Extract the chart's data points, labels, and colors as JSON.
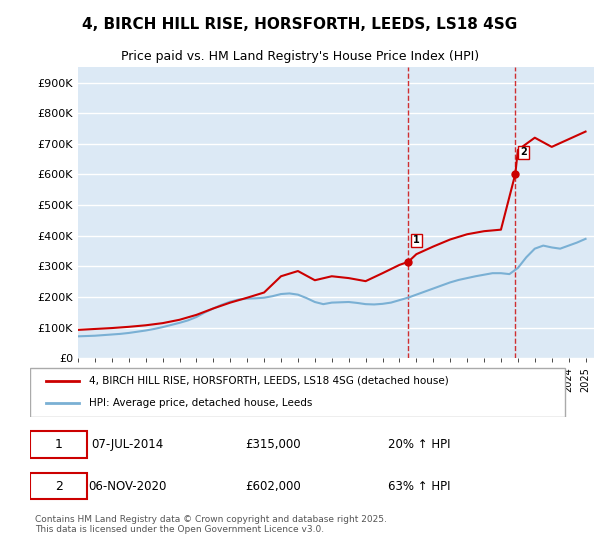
{
  "title": "4, BIRCH HILL RISE, HORSFORTH, LEEDS, LS18 4SG",
  "subtitle": "Price paid vs. HM Land Registry's House Price Index (HPI)",
  "ylabel_ticks": [
    "£0",
    "£100K",
    "£200K",
    "£300K",
    "£400K",
    "£500K",
    "£600K",
    "£700K",
    "£800K",
    "£900K"
  ],
  "ytick_vals": [
    0,
    100000,
    200000,
    300000,
    400000,
    500000,
    600000,
    700000,
    800000,
    900000
  ],
  "ylim": [
    0,
    950000
  ],
  "xlim_start": 1995.0,
  "xlim_end": 2025.5,
  "background_color": "#ffffff",
  "plot_bg_color": "#dce9f5",
  "grid_color": "#ffffff",
  "line1_color": "#cc0000",
  "line2_color": "#7ab0d4",
  "vline1_x": 2014.52,
  "vline2_x": 2020.85,
  "vline_color": "#cc0000",
  "marker1_x": 2014.52,
  "marker1_y": 315000,
  "marker2_x": 2020.85,
  "marker2_y": 602000,
  "annotation1_label": "1",
  "annotation2_label": "2",
  "legend_line1": "4, BIRCH HILL RISE, HORSFORTH, LEEDS, LS18 4SG (detached house)",
  "legend_line2": "HPI: Average price, detached house, Leeds",
  "table_row1": [
    "1",
    "07-JUL-2014",
    "£315,000",
    "20% ↑ HPI"
  ],
  "table_row2": [
    "2",
    "06-NOV-2020",
    "£602,000",
    "63% ↑ HPI"
  ],
  "footer": "Contains HM Land Registry data © Crown copyright and database right 2025.\nThis data is licensed under the Open Government Licence v3.0.",
  "hpi_years": [
    1995,
    1995.5,
    1996,
    1996.5,
    1997,
    1997.5,
    1998,
    1998.5,
    1999,
    1999.5,
    2000,
    2000.5,
    2001,
    2001.5,
    2002,
    2002.5,
    2003,
    2003.5,
    2004,
    2004.5,
    2005,
    2005.5,
    2006,
    2006.5,
    2007,
    2007.5,
    2008,
    2008.5,
    2009,
    2009.5,
    2010,
    2010.5,
    2011,
    2011.5,
    2012,
    2012.5,
    2013,
    2013.5,
    2014,
    2014.5,
    2015,
    2015.5,
    2016,
    2016.5,
    2017,
    2017.5,
    2018,
    2018.5,
    2019,
    2019.5,
    2020,
    2020.5,
    2021,
    2021.5,
    2022,
    2022.5,
    2023,
    2023.5,
    2024,
    2024.5,
    2025
  ],
  "hpi_vals": [
    72000,
    73000,
    74000,
    76000,
    78000,
    80000,
    83000,
    87000,
    91000,
    96000,
    102000,
    109000,
    116000,
    124000,
    135000,
    150000,
    163000,
    175000,
    185000,
    192000,
    195000,
    196000,
    198000,
    203000,
    210000,
    212000,
    208000,
    197000,
    184000,
    177000,
    182000,
    183000,
    184000,
    181000,
    177000,
    176000,
    178000,
    182000,
    190000,
    198000,
    208000,
    218000,
    228000,
    238000,
    248000,
    256000,
    262000,
    268000,
    273000,
    278000,
    278000,
    275000,
    295000,
    330000,
    358000,
    368000,
    362000,
    358000,
    368000,
    378000,
    390000
  ],
  "price_years": [
    1995,
    1996,
    1997,
    1998,
    1999,
    2000,
    2001,
    2002,
    2003,
    2004,
    2005,
    2006,
    2007,
    2008,
    2009,
    2010,
    2011,
    2012,
    2013,
    2014,
    2014.52,
    2015,
    2016,
    2017,
    2018,
    2019,
    2020,
    2020.85,
    2021,
    2022,
    2023,
    2024,
    2025
  ],
  "price_vals": [
    93000,
    96000,
    99000,
    103000,
    108000,
    115000,
    126000,
    142000,
    163000,
    182000,
    198000,
    215000,
    268000,
    285000,
    255000,
    268000,
    262000,
    252000,
    278000,
    305000,
    315000,
    340000,
    365000,
    388000,
    405000,
    415000,
    420000,
    602000,
    680000,
    720000,
    690000,
    715000,
    740000
  ]
}
